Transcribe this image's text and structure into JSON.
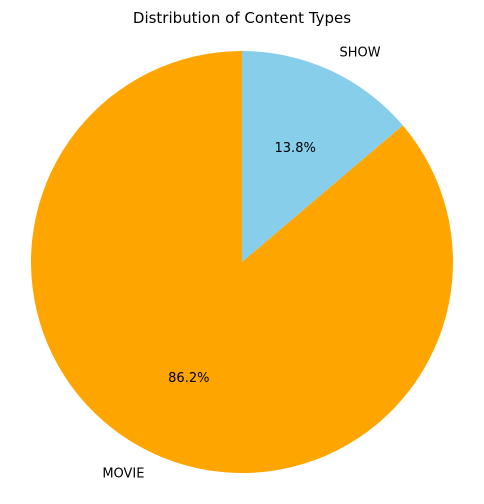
{
  "chart_data": {
    "type": "pie",
    "title": "Distribution of Content Types",
    "slices": [
      {
        "label": "SHOW",
        "value": 13.8,
        "percent_label": "13.8%",
        "color": "#87CEEB"
      },
      {
        "label": "MOVIE",
        "value": 86.2,
        "percent_label": "86.2%",
        "color": "#FFA500"
      }
    ],
    "start_angle": "90 degrees (top)",
    "direction": "clockwise"
  }
}
